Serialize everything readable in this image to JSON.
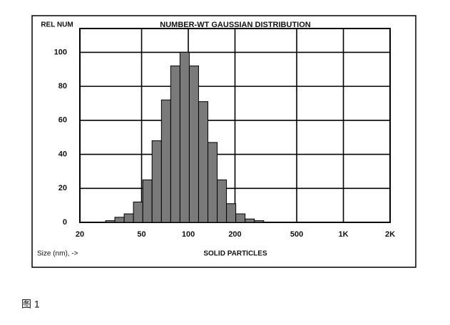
{
  "chart_data": {
    "type": "histogram",
    "title": "NUMBER-WT GAUSSIAN DISTRIBUTION",
    "y_label": "REL NUM",
    "x_label": "SOLID PARTICLES",
    "x_unit_label": "Size (nm), ->",
    "xscale": "log",
    "bins": [
      29.3,
      33.6,
      38.6,
      44.3,
      50.9,
      58.4,
      67.1,
      77.0,
      88.4,
      101.5,
      116.5,
      133.8,
      153.6,
      176.3,
      202.4,
      232.4,
      266.8,
      306.3
    ],
    "values": [
      1,
      3,
      5,
      12,
      25,
      48,
      72,
      92,
      100,
      92,
      71,
      47,
      25,
      11,
      5,
      2,
      1
    ],
    "color": "#7a7a7a",
    "xlim": [
      20,
      2000
    ],
    "xticks": [
      20,
      50,
      100,
      200,
      500,
      {
        "value": 1000,
        "label": "1K"
      },
      {
        "value": 2000,
        "label": "2K"
      }
    ],
    "ylim": [
      0,
      114
    ],
    "yticks": [
      0,
      20,
      40,
      60,
      80,
      100
    ],
    "grid": true
  },
  "caption": "图 1"
}
